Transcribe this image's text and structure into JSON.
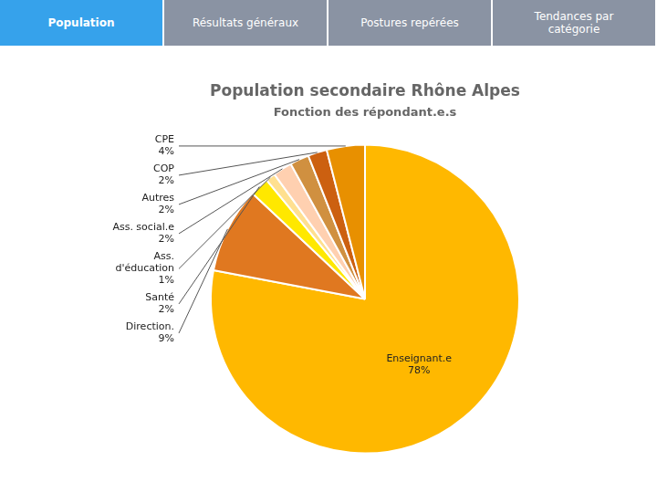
{
  "chart_data": {
    "type": "pie",
    "title": "Population secondaire Rhône Alpes",
    "subtitle": "Fonction des répondant.e.s",
    "annotations": [
      "Population",
      "Résultats généraux",
      "Postures repérées",
      "Tendances par\ncatégorie"
    ],
    "categories": [
      "Enseignant.e",
      "Direction.",
      "Santé",
      "Ass.\nd'éducation",
      "Ass. social.e",
      "Autres",
      "COP",
      "CPE"
    ],
    "values": [
      78,
      9,
      2,
      1,
      2,
      2,
      2,
      4
    ],
    "value_labels": [
      "78%",
      "9%",
      "2%",
      "1%",
      "2%",
      "2%",
      "2%",
      "4%"
    ],
    "colors": [
      "#FFB800",
      "#E07820",
      "#FFE800",
      "#FFE090",
      "#FFD0B0",
      "#D09040",
      "#CC6010",
      "#E89000"
    ],
    "data_labels": true
  }
}
